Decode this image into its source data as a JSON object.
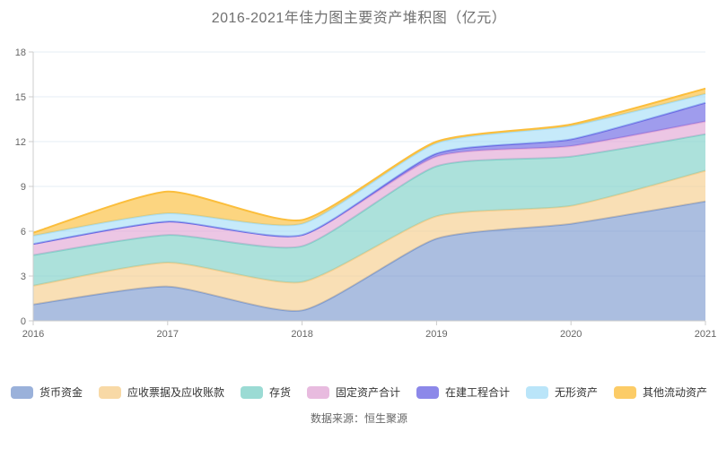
{
  "title": "2016-2021年佳力图主要资产堆积图（亿元）",
  "footer": "数据来源：恒生聚源",
  "colors": {
    "background": "#ffffff",
    "title_text": "#707070",
    "axis_text": "#666666",
    "legend_text": "#333333",
    "grid_line": "#e6ecf5",
    "axis_line": "#cccccc"
  },
  "chart_data": {
    "type": "area",
    "stacked": true,
    "title": "2016-2021年佳力图主要资产堆积图（亿元）",
    "unit": "亿元",
    "categories": [
      "2016",
      "2017",
      "2018",
      "2019",
      "2020",
      "2021"
    ],
    "series": [
      {
        "name": "货币资金",
        "color": "#7e9bd0",
        "values": [
          1.1,
          2.3,
          0.7,
          5.5,
          6.5,
          8.0
        ]
      },
      {
        "name": "应收票据及应收账款",
        "color": "#f6ce8d",
        "values": [
          1.25,
          1.6,
          1.9,
          1.5,
          1.2,
          2.05
        ]
      },
      {
        "name": "存货",
        "color": "#7fd1c8",
        "values": [
          2.05,
          1.85,
          2.4,
          3.35,
          3.3,
          2.45
        ]
      },
      {
        "name": "固定资产合计",
        "color": "#e2a8d6",
        "values": [
          0.75,
          0.9,
          0.75,
          0.65,
          0.7,
          0.85
        ]
      },
      {
        "name": "在建工程合计",
        "color": "#6b67e3",
        "values": [
          0.0,
          0.0,
          0.0,
          0.2,
          0.45,
          1.25
        ]
      },
      {
        "name": "无形资产",
        "color": "#a7def7",
        "values": [
          0.55,
          0.55,
          0.75,
          0.7,
          0.9,
          0.6
        ]
      },
      {
        "name": "其他流动资产",
        "color": "#fbbe3c",
        "values": [
          0.2,
          1.45,
          0.25,
          0.1,
          0.1,
          0.35
        ]
      }
    ],
    "xlabel": "",
    "ylabel": "",
    "ylim": [
      0,
      18
    ],
    "yticks": [
      0,
      3,
      6,
      9,
      12,
      15,
      18
    ],
    "grid": true,
    "legend_position": "bottom"
  }
}
